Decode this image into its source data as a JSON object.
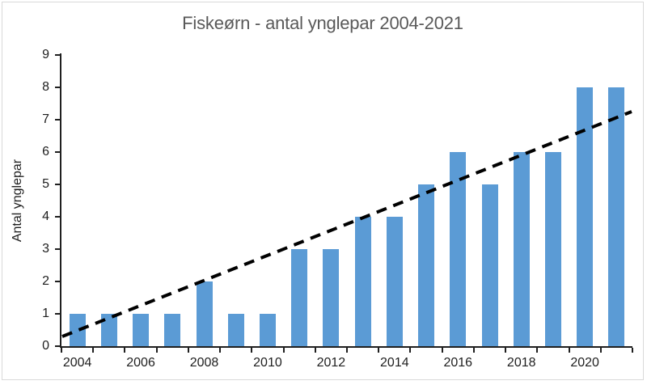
{
  "chart_data": {
    "type": "bar",
    "title": "Fiskeørn - antal ynglepar 2004-2021",
    "ylabel": "Antal ynglepar",
    "xlabel": "",
    "categories": [
      "2004",
      "2005",
      "2006",
      "2007",
      "2008",
      "2009",
      "2010",
      "2011",
      "2012",
      "2013",
      "2014",
      "2015",
      "2016",
      "2017",
      "2018",
      "2019",
      "2020",
      "2021"
    ],
    "values": [
      1,
      1,
      1,
      1,
      2,
      1,
      1,
      3,
      3,
      4,
      4,
      5,
      6,
      5,
      6,
      6,
      8,
      8
    ],
    "x_axis_labels_shown": [
      "2004",
      "2006",
      "2008",
      "2010",
      "2012",
      "2014",
      "2016",
      "2018",
      "2020"
    ],
    "y_ticks": [
      0,
      1,
      2,
      3,
      4,
      5,
      6,
      7,
      8,
      9
    ],
    "ylim": [
      0,
      9
    ],
    "grid": "off",
    "legend": "none",
    "trendline": {
      "type": "linear",
      "style": "dashed",
      "start_value": 0.3,
      "end_value": 7.25
    }
  },
  "colors": {
    "bar": "#5B9BD5",
    "title_text": "#595959",
    "axis_text": "#1f1f1f",
    "axis_line": "#1f1f1f",
    "trendline": "#000000",
    "chart_border": "#d9d9d9",
    "background": "#ffffff"
  }
}
